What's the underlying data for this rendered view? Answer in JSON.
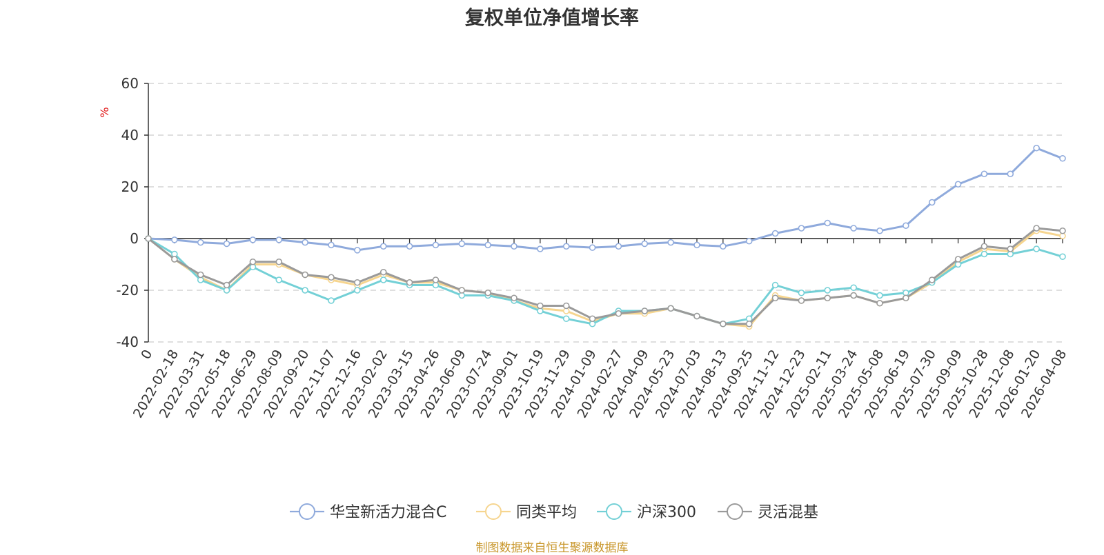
{
  "title": "复权单位净值增长率",
  "source": "制图数据来自恒生聚源数据库",
  "chart_data": {
    "type": "line",
    "title": "复权单位净值增长率",
    "ylabel": "%",
    "ylim": [
      -40,
      60
    ],
    "yticks": [
      60,
      40,
      20,
      0,
      -20,
      -40
    ],
    "grid": true,
    "legend_position": "bottom",
    "x": [
      "0",
      "2022-02-18",
      "2022-03-31",
      "2022-05-18",
      "2022-06-29",
      "2022-08-09",
      "2022-09-20",
      "2022-11-07",
      "2022-12-16",
      "2023-02-02",
      "2023-03-15",
      "2023-04-26",
      "2023-06-09",
      "2023-07-24",
      "2023-09-01",
      "2023-10-19",
      "2023-11-29",
      "2024-01-09",
      "2024-02-27",
      "2024-04-09",
      "2024-05-23",
      "2024-07-03",
      "2024-08-13",
      "2024-09-25",
      "2024-11-12",
      "2024-12-23",
      "2025-02-11",
      "2025-03-24",
      "2025-05-08",
      "2025-06-19",
      "2025-07-30",
      "2025-09-09",
      "2025-10-28",
      "2025-12-08",
      "2026-01-20",
      "2026-04-08"
    ],
    "series": [
      {
        "name": "华宝新活力混合C",
        "color": "#8faadc",
        "values": [
          0,
          -0.5,
          -1.5,
          -2,
          -0.5,
          -0.5,
          -1.5,
          -2.5,
          -4.5,
          -3,
          -3,
          -2.5,
          -2,
          -2.5,
          -3,
          -4,
          -3,
          -3.5,
          -3,
          -2,
          -1.5,
          -2.5,
          -3,
          -1,
          2,
          4,
          6,
          4,
          3,
          5,
          14,
          21,
          25,
          25,
          35,
          31
        ]
      },
      {
        "name": "同类平均",
        "color": "#f6d58f",
        "values": [
          0,
          -8,
          -15,
          -20,
          -10,
          -10,
          -14,
          -16,
          -18,
          -14,
          -17,
          -17,
          -20,
          -21,
          -24,
          -27,
          -28,
          -32,
          -29,
          -29,
          -27,
          -30,
          -33,
          -34,
          -22,
          -24,
          -23,
          -22,
          -25,
          -23,
          -17,
          -9,
          -4,
          -5,
          3,
          1
        ]
      },
      {
        "name": "沪深300",
        "color": "#73d0d6",
        "values": [
          0,
          -6,
          -16,
          -20,
          -11,
          -16,
          -20,
          -24,
          -20,
          -16,
          -18,
          -18,
          -22,
          -22,
          -24,
          -28,
          -31,
          -33,
          -28,
          -28,
          -27,
          -30,
          -33,
          -31,
          -18,
          -21,
          -20,
          -19,
          -22,
          -21,
          -17,
          -10,
          -6,
          -6,
          -4,
          -7
        ]
      },
      {
        "name": "灵活混基",
        "color": "#9a9a9a",
        "values": [
          0,
          -8,
          -14,
          -18,
          -9,
          -9,
          -14,
          -15,
          -17,
          -13,
          -17,
          -16,
          -20,
          -21,
          -23,
          -26,
          -26,
          -31,
          -29,
          -28,
          -27,
          -30,
          -33,
          -33,
          -23,
          -24,
          -23,
          -22,
          -25,
          -23,
          -16,
          -8,
          -3,
          -4,
          4,
          3
        ]
      }
    ]
  }
}
